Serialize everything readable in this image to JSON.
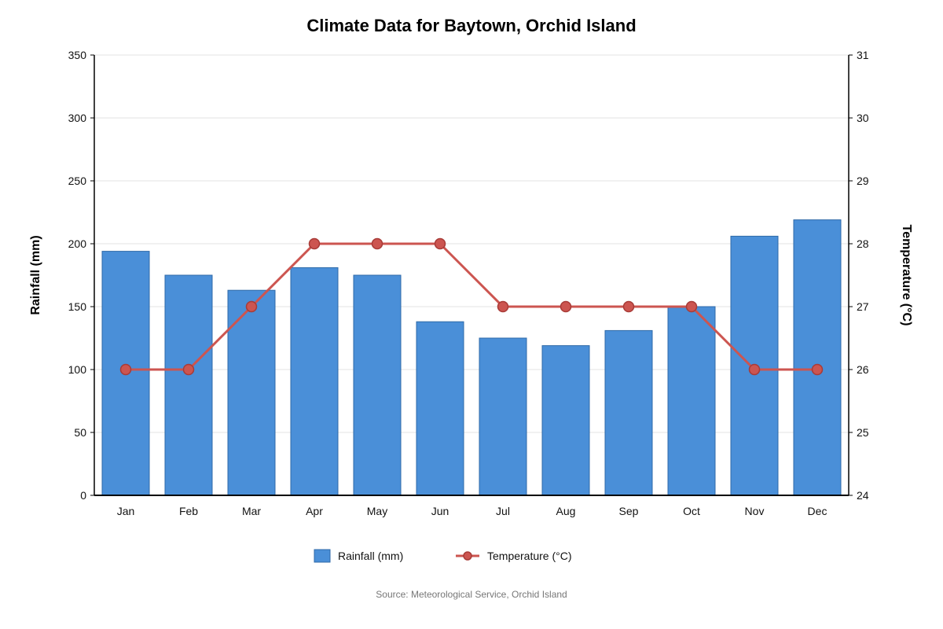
{
  "chart_data": {
    "type": "bar",
    "title": "Climate Data for Baytown, Orchid Island",
    "categories": [
      "Jan",
      "Feb",
      "Mar",
      "Apr",
      "May",
      "Jun",
      "Jul",
      "Aug",
      "Sep",
      "Oct",
      "Nov",
      "Dec"
    ],
    "series": [
      {
        "name": "Rainfall (mm)",
        "type": "bar",
        "axis": "left",
        "color": "#4a8fd8",
        "values": [
          194,
          175,
          163,
          181,
          175,
          138,
          125,
          119,
          131,
          150,
          206,
          219
        ]
      },
      {
        "name": "Temperature (°C)",
        "type": "line",
        "axis": "right",
        "color": "#cc5550",
        "values": [
          26,
          26,
          27,
          28,
          28,
          28,
          27,
          27,
          27,
          27,
          26,
          26
        ]
      }
    ],
    "ylabel": "Rainfall (mm)",
    "y2label": "Temperature (°C)",
    "ylim": [
      0,
      350
    ],
    "yticks": [
      "0",
      "50",
      "100",
      "150",
      "200",
      "250",
      "300",
      "350"
    ],
    "y2lim": [
      24,
      31
    ],
    "y2ticks": [
      "24",
      "25",
      "26",
      "27",
      "28",
      "29",
      "30",
      "31"
    ],
    "grid": true,
    "legend_position": "bottom-center",
    "source": "Source: Meteorological Service, Orchid Island"
  }
}
